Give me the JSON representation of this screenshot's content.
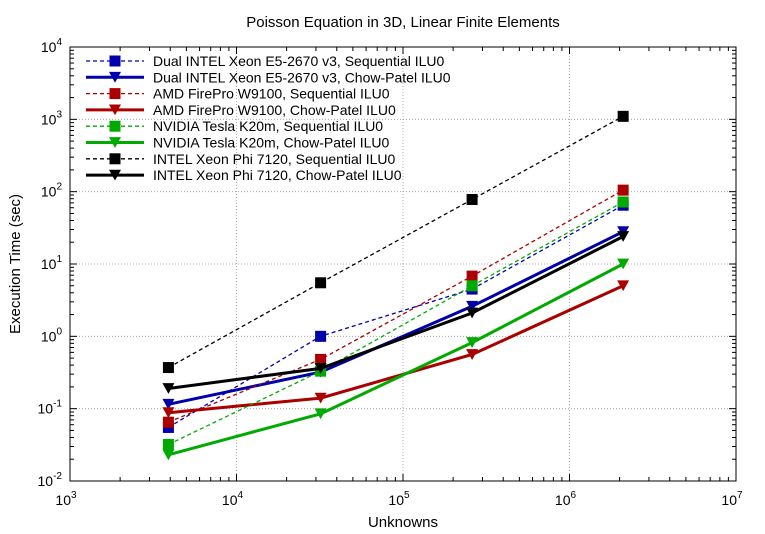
{
  "chart_data": {
    "type": "line",
    "title": "Poisson Equation in 3D, Linear Finite Elements",
    "xlabel": "Unknowns",
    "ylabel": "Execution Time (sec)",
    "x_scale": "log",
    "y_scale": "log",
    "xlim": [
      1000,
      10000000
    ],
    "ylim": [
      0.01,
      10000
    ],
    "x_ticks": [
      {
        "base": "10",
        "exp": "3"
      },
      {
        "base": "10",
        "exp": "4"
      },
      {
        "base": "10",
        "exp": "5"
      },
      {
        "base": "10",
        "exp": "6"
      },
      {
        "base": "10",
        "exp": "7"
      }
    ],
    "y_ticks": [
      {
        "base": "10",
        "exp": "-2"
      },
      {
        "base": "10",
        "exp": "-1"
      },
      {
        "base": "10",
        "exp": "0"
      },
      {
        "base": "10",
        "exp": "1"
      },
      {
        "base": "10",
        "exp": "2"
      },
      {
        "base": "10",
        "exp": "3"
      },
      {
        "base": "10",
        "exp": "4"
      }
    ],
    "grid": true,
    "legend_position": "top-left",
    "x": [
      3900,
      32000,
      260000,
      2100000
    ],
    "series": [
      {
        "name": "Dual INTEL Xeon E5-2670 v3, Sequential ILU0",
        "values": [
          0.055,
          1.0,
          4.5,
          65
        ],
        "color": "#0000aa",
        "dashed": true,
        "marker": "square"
      },
      {
        "name": "Dual INTEL Xeon E5-2670 v3, Chow-Patel ILU0",
        "values": [
          0.115,
          0.32,
          2.6,
          28
        ],
        "color": "#0000aa",
        "dashed": false,
        "marker": "triangle-down"
      },
      {
        "name": "AMD FirePro W9100, Sequential ILU0",
        "values": [
          0.065,
          0.48,
          6.8,
          105
        ],
        "color": "#aa0000",
        "dashed": true,
        "marker": "square"
      },
      {
        "name": "AMD FirePro W9100, Chow-Patel ILU0",
        "values": [
          0.088,
          0.14,
          0.56,
          5.0
        ],
        "color": "#aa0000",
        "dashed": false,
        "marker": "triangle-down"
      },
      {
        "name": "NVIDIA Tesla K20m, Sequential ILU0",
        "values": [
          0.032,
          0.33,
          5.0,
          72
        ],
        "color": "#00aa00",
        "dashed": true,
        "marker": "square"
      },
      {
        "name": "NVIDIA Tesla K20m, Chow-Patel ILU0",
        "values": [
          0.023,
          0.085,
          0.82,
          10
        ],
        "color": "#00aa00",
        "dashed": false,
        "marker": "triangle-down"
      },
      {
        "name": "INTEL Xeon Phi 7120, Sequential ILU0",
        "values": [
          0.37,
          5.5,
          78,
          1100
        ],
        "color": "#000000",
        "dashed": true,
        "marker": "square"
      },
      {
        "name": "INTEL Xeon Phi 7120, Chow-Patel ILU0",
        "values": [
          0.19,
          0.36,
          2.1,
          24
        ],
        "color": "#000000",
        "dashed": false,
        "marker": "triangle-down"
      }
    ]
  }
}
